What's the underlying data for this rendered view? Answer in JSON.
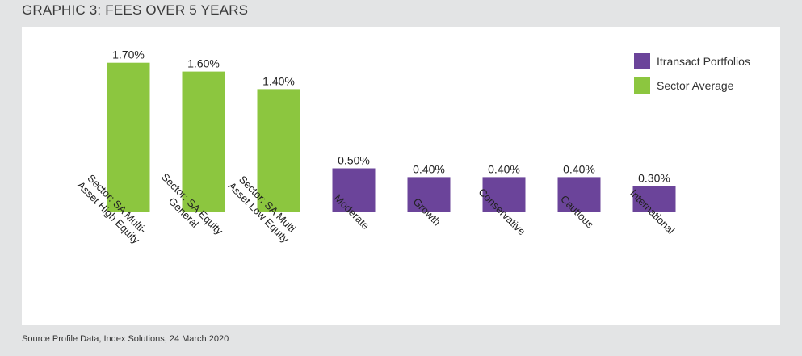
{
  "heading": "GRAPHIC 3: FEES OVER 5 YEARS",
  "source": "Source Profile Data, Index Solutions, 24 March 2020",
  "colors": {
    "itransact": "#6b449a",
    "sector": "#8cc63f",
    "background": "#e3e4e5"
  },
  "chart_data": {
    "type": "bar",
    "title": "GRAPHIC 3: FEES OVER 5 YEARS",
    "categories": [
      [
        "Sector: SA Multi-",
        "Asset High Equity"
      ],
      [
        "Sector: SA Equity",
        "General"
      ],
      [
        "Sector: SA Multi",
        "Asset Low Equity"
      ],
      [
        "Moderate"
      ],
      [
        "Growth"
      ],
      [
        "Conservative"
      ],
      [
        "Cautious"
      ],
      [
        "International"
      ]
    ],
    "values": [
      1.7,
      1.6,
      1.4,
      0.5,
      0.4,
      0.4,
      0.4,
      0.3
    ],
    "value_labels": [
      "1.70%",
      "1.60%",
      "1.40%",
      "0.50%",
      "0.40%",
      "0.40%",
      "0.40%",
      "0.30%"
    ],
    "bar_series": [
      "Sector Average",
      "Sector Average",
      "Sector Average",
      "Itransact Portfolios",
      "Itransact Portfolios",
      "Itransact Portfolios",
      "Itransact Portfolios",
      "Itransact Portfolios"
    ],
    "series": [
      {
        "name": "Itransact Portfolios",
        "color": "#6b449a"
      },
      {
        "name": "Sector Average",
        "color": "#8cc63f"
      }
    ],
    "xlabel": "",
    "ylabel": "",
    "ylim": [
      0,
      1.9
    ],
    "grid": false,
    "legend_position": "top-right"
  },
  "legend": [
    {
      "label": "Itransact Portfolios",
      "color": "#6b449a"
    },
    {
      "label": "Sector Average",
      "color": "#8cc63f"
    }
  ]
}
